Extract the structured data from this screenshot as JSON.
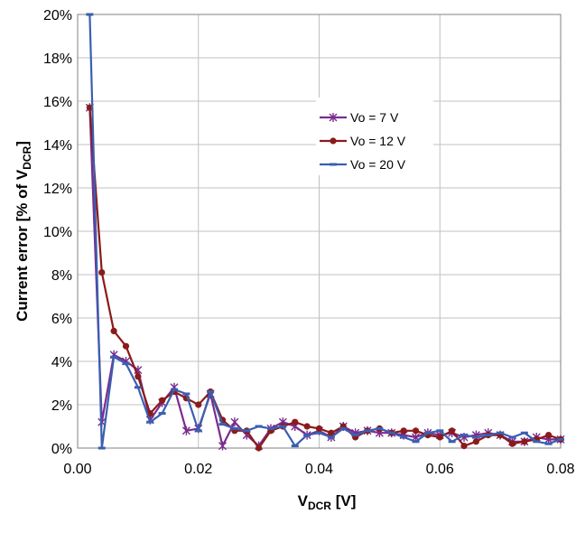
{
  "chart_data": {
    "type": "line",
    "xlabel": {
      "main": "V",
      "sub": "DCR",
      "unit": " [V]"
    },
    "ylabel": {
      "prefix": "Current error [% of V",
      "sub": "DCR",
      "suffix": "]"
    },
    "xlim": [
      0,
      0.08
    ],
    "ylim": [
      0,
      20
    ],
    "x_ticks": [
      "0.00",
      "0.02",
      "0.04",
      "0.06",
      "0.08"
    ],
    "y_ticks": [
      "0%",
      "2%",
      "4%",
      "6%",
      "8%",
      "10%",
      "12%",
      "14%",
      "16%",
      "18%",
      "20%"
    ],
    "grid": true,
    "legend_position": "upper-right",
    "series": [
      {
        "name": "Vo = 7 V",
        "color": "#7b2c8e",
        "marker": "asterisk",
        "x": [
          0.002,
          0.004,
          0.006,
          0.008,
          0.01,
          0.012,
          0.014,
          0.016,
          0.018,
          0.02,
          0.022,
          0.024,
          0.026,
          0.028,
          0.03,
          0.032,
          0.034,
          0.036,
          0.038,
          0.04,
          0.042,
          0.044,
          0.046,
          0.048,
          0.05,
          0.052,
          0.054,
          0.056,
          0.058,
          0.06,
          0.062,
          0.064,
          0.066,
          0.068,
          0.07,
          0.072,
          0.074,
          0.076,
          0.078,
          0.08
        ],
        "y": [
          15.7,
          1.2,
          4.3,
          4.0,
          3.6,
          1.3,
          2.1,
          2.8,
          0.8,
          0.9,
          2.5,
          0.1,
          1.2,
          0.6,
          0.1,
          0.9,
          1.2,
          1.0,
          0.6,
          0.8,
          0.5,
          1.0,
          0.7,
          0.8,
          0.7,
          0.7,
          0.6,
          0.5,
          0.7,
          0.6,
          0.7,
          0.5,
          0.6,
          0.7,
          0.6,
          0.3,
          0.3,
          0.5,
          0.4,
          0.4
        ]
      },
      {
        "name": "Vo = 12 V",
        "color": "#8b1a1a",
        "marker": "circle",
        "x": [
          0.002,
          0.004,
          0.006,
          0.008,
          0.01,
          0.012,
          0.014,
          0.016,
          0.018,
          0.02,
          0.022,
          0.024,
          0.026,
          0.028,
          0.03,
          0.032,
          0.034,
          0.036,
          0.038,
          0.04,
          0.042,
          0.044,
          0.046,
          0.048,
          0.05,
          0.052,
          0.054,
          0.056,
          0.058,
          0.06,
          0.062,
          0.064,
          0.066,
          0.068,
          0.07,
          0.072,
          0.074,
          0.076,
          0.078,
          0.08
        ],
        "y": [
          15.7,
          8.1,
          5.4,
          4.7,
          3.3,
          1.6,
          2.2,
          2.6,
          2.3,
          2.0,
          2.6,
          1.3,
          0.8,
          0.8,
          0.0,
          0.8,
          1.0,
          1.2,
          1.0,
          0.9,
          0.7,
          1.0,
          0.5,
          0.8,
          0.9,
          0.7,
          0.8,
          0.8,
          0.6,
          0.5,
          0.8,
          0.1,
          0.3,
          0.6,
          0.6,
          0.2,
          0.3,
          0.4,
          0.6,
          0.4
        ]
      },
      {
        "name": "Vo = 20 V",
        "color": "#3a5fb0",
        "marker": "dash",
        "x": [
          0.002,
          0.004,
          0.006,
          0.008,
          0.01,
          0.012,
          0.014,
          0.016,
          0.018,
          0.02,
          0.022,
          0.024,
          0.026,
          0.028,
          0.03,
          0.032,
          0.034,
          0.036,
          0.038,
          0.04,
          0.042,
          0.044,
          0.046,
          0.048,
          0.05,
          0.052,
          0.054,
          0.056,
          0.058,
          0.06,
          0.062,
          0.064,
          0.066,
          0.068,
          0.07,
          0.072,
          0.074,
          0.076,
          0.078,
          0.08
        ],
        "y": [
          20.0,
          0.0,
          4.2,
          3.9,
          2.8,
          1.2,
          1.6,
          2.7,
          2.5,
          0.8,
          2.6,
          1.1,
          0.9,
          0.8,
          1.0,
          0.9,
          1.0,
          0.1,
          0.6,
          0.7,
          0.5,
          0.9,
          0.6,
          0.8,
          0.9,
          0.7,
          0.5,
          0.3,
          0.7,
          0.8,
          0.3,
          0.6,
          0.5,
          0.6,
          0.7,
          0.5,
          0.7,
          0.3,
          0.2,
          0.4
        ]
      }
    ]
  }
}
